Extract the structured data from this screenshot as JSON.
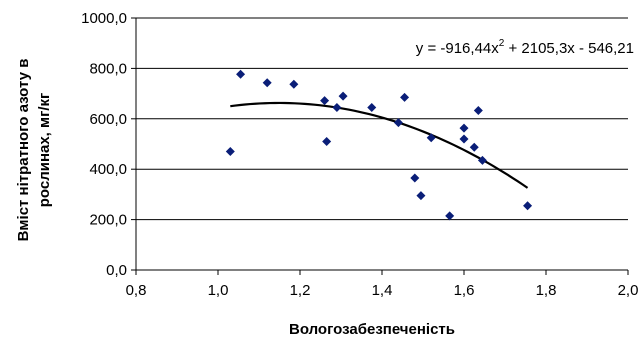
{
  "chart_data": {
    "type": "scatter",
    "xlabel": "Вологозабезпеченість",
    "ylabel": "Вміст нітратного азоту в рослинах,  мг/кг",
    "xlim": [
      0.8,
      2.0
    ],
    "ylim": [
      0,
      1000
    ],
    "x_ticks": [
      "0,8",
      "1,0",
      "1,2",
      "1,4",
      "1,6",
      "1,8",
      "2,0"
    ],
    "y_ticks": [
      "0,0",
      "200,0",
      "400,0",
      "600,0",
      "800,0",
      "1000,0"
    ],
    "x_tick_values": [
      0.8,
      1.0,
      1.2,
      1.4,
      1.6,
      1.8,
      2.0
    ],
    "y_tick_values": [
      0,
      200,
      400,
      600,
      800,
      1000
    ],
    "grid": "horizontal",
    "points": [
      {
        "x": 1.03,
        "y": 470
      },
      {
        "x": 1.055,
        "y": 777
      },
      {
        "x": 1.12,
        "y": 743
      },
      {
        "x": 1.185,
        "y": 737
      },
      {
        "x": 1.26,
        "y": 672
      },
      {
        "x": 1.265,
        "y": 510
      },
      {
        "x": 1.29,
        "y": 645
      },
      {
        "x": 1.305,
        "y": 690
      },
      {
        "x": 1.375,
        "y": 645
      },
      {
        "x": 1.44,
        "y": 585
      },
      {
        "x": 1.455,
        "y": 685
      },
      {
        "x": 1.48,
        "y": 365
      },
      {
        "x": 1.495,
        "y": 295
      },
      {
        "x": 1.52,
        "y": 525
      },
      {
        "x": 1.565,
        "y": 215
      },
      {
        "x": 1.6,
        "y": 563
      },
      {
        "x": 1.6,
        "y": 520
      },
      {
        "x": 1.625,
        "y": 487
      },
      {
        "x": 1.635,
        "y": 633
      },
      {
        "x": 1.645,
        "y": 435
      },
      {
        "x": 1.755,
        "y": 255
      }
    ],
    "trendline": {
      "equation": "y = -916,44x2 + 2105,3x - 546,21",
      "equation_parts": [
        "y = -916,44x",
        "2",
        " + 2105,3x - 546,21"
      ],
      "coefficients": {
        "a": -916.44,
        "b": 2105.3,
        "c": -546.21
      },
      "x_range": [
        1.03,
        1.755
      ]
    },
    "colors": {
      "marker": "#0a1e78",
      "line": "#000000"
    },
    "marker": "diamond"
  }
}
